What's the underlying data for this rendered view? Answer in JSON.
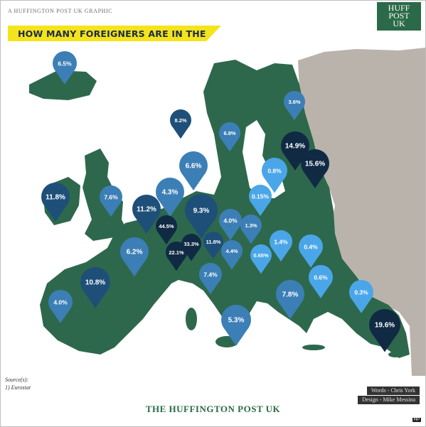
{
  "header": {
    "top_caption": "A HUFFINGTON POST UK GRAPHIC",
    "logo_lines": [
      "HUFF",
      "POST",
      "UK"
    ],
    "title": "HOW MANY FOREIGNERS ARE IN THE UK?"
  },
  "colors": {
    "land": "#2e684c",
    "non_eu_land": "#bab3ab",
    "sea": "#ffffff",
    "banner": "#f4e41b",
    "pin_light": "#4aa6e8",
    "pin_mid": "#3c7fb6",
    "pin_dark": "#1e4f78",
    "pin_darkest": "#102a44"
  },
  "map": {
    "pins": [
      {
        "label": "6.5%",
        "shade": "mid"
      },
      {
        "label": "8.2%",
        "shade": "dark"
      },
      {
        "label": "3.6%",
        "shade": "mid"
      },
      {
        "label": "6.8%",
        "shade": "mid"
      },
      {
        "label": "14.9%",
        "shade": "darkest"
      },
      {
        "label": "15.6%",
        "shade": "darkest"
      },
      {
        "label": "6.6%",
        "shade": "mid"
      },
      {
        "label": "0.8%",
        "shade": "light"
      },
      {
        "label": "11.8%",
        "shade": "dark"
      },
      {
        "label": "7.6%",
        "shade": "mid"
      },
      {
        "label": "4.3%",
        "shade": "mid"
      },
      {
        "label": "11.2%",
        "shade": "dark"
      },
      {
        "label": "9.3%",
        "shade": "dark"
      },
      {
        "label": "0.15%",
        "shade": "light"
      },
      {
        "label": "44.5%",
        "shade": "darkest"
      },
      {
        "label": "4.0%",
        "shade": "mid"
      },
      {
        "label": "1.3%",
        "shade": "mid"
      },
      {
        "label": "33.3%",
        "shade": "darkest"
      },
      {
        "label": "11.8%",
        "shade": "dark"
      },
      {
        "label": "6.2%",
        "shade": "mid"
      },
      {
        "label": "22.1%",
        "shade": "darkest"
      },
      {
        "label": "4.4%",
        "shade": "mid"
      },
      {
        "label": "0.65%",
        "shade": "light"
      },
      {
        "label": "1.4%",
        "shade": "light"
      },
      {
        "label": "0.4%",
        "shade": "light"
      },
      {
        "label": "10.8%",
        "shade": "dark"
      },
      {
        "label": "7.4%",
        "shade": "mid"
      },
      {
        "label": "0.6%",
        "shade": "light"
      },
      {
        "label": "4.0%",
        "shade": "mid"
      },
      {
        "label": "7.8%",
        "shade": "mid"
      },
      {
        "label": "0.3%",
        "shade": "light"
      },
      {
        "label": "5.3%",
        "shade": "mid"
      },
      {
        "label": "19.6%",
        "shade": "darkest"
      }
    ]
  },
  "sources": {
    "heading": "Source(s):",
    "item": "1) Eurostat"
  },
  "credits": {
    "words": "Words - Chris York",
    "design": "Design - Mike Messina"
  },
  "footer": {
    "publication": "THE HUFFINGTON POST UK",
    "small_tag": "HP"
  }
}
